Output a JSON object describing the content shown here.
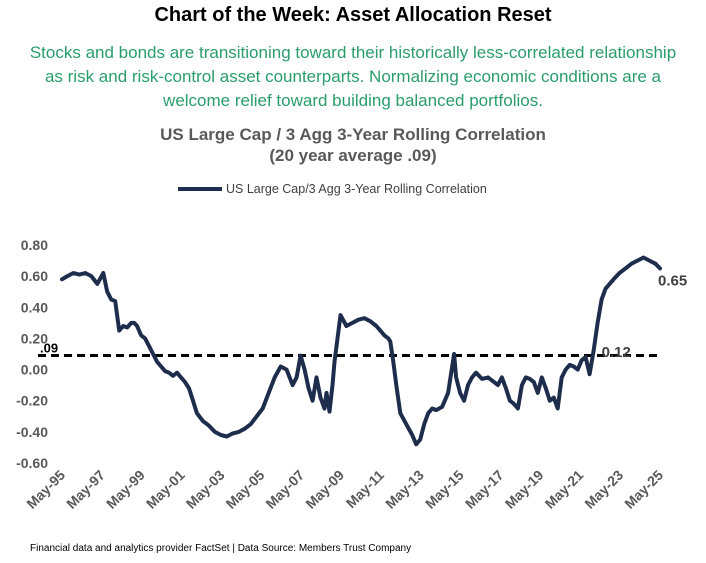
{
  "header": {
    "headline": "Chart of the Week: Asset Allocation Reset",
    "lede": "Stocks and bonds are transitioning toward their historically less-correlated relationship as risk and risk-control asset counterparts. Normalizing economic conditions are a welcome relief toward building balanced portfolios."
  },
  "chart_data": {
    "type": "line",
    "title": "US Large Cap / 3 Agg 3-Year Rolling Correlation",
    "subtitle": "(20 year average .09)",
    "xlabel": "",
    "ylabel": "",
    "legend": "top-center",
    "grid": false,
    "ylim": [
      -0.6,
      0.8
    ],
    "yticks": [
      "0.80",
      "0.60",
      "0.40",
      "0.20",
      "0.00",
      "-0.20",
      "-0.40",
      "-0.60"
    ],
    "xticks": [
      "May-95",
      "May-97",
      "May-99",
      "May-01",
      "May-03",
      "May-05",
      "May-07",
      "May-09",
      "May-11",
      "May-13",
      "May-15",
      "May-17",
      "May-19",
      "May-21",
      "May-23",
      "May-25"
    ],
    "series": [
      {
        "name": "US Large Cap/3 Agg 3-Year Rolling Correlation",
        "color": "#1f2d4d",
        "x": [
          1995.33,
          1995.6,
          1995.9,
          1996.2,
          1996.5,
          1996.8,
          1997.1,
          1997.4,
          1997.6,
          1997.8,
          1998.0,
          1998.2,
          1998.4,
          1998.6,
          1998.8,
          1998.95,
          1999.1,
          1999.3,
          1999.5,
          1999.7,
          1999.9,
          2000.1,
          2000.3,
          2000.5,
          2000.7,
          2000.9,
          2001.1,
          2001.3,
          2001.5,
          2001.7,
          2001.9,
          2002.1,
          2002.4,
          2002.7,
          2003.0,
          2003.3,
          2003.6,
          2003.9,
          2004.2,
          2004.5,
          2004.8,
          2005.1,
          2005.4,
          2005.7,
          2006.0,
          2006.3,
          2006.6,
          2006.9,
          2007.1,
          2007.3,
          2007.5,
          2007.7,
          2007.9,
          2008.1,
          2008.3,
          2008.5,
          2008.6,
          2008.75,
          2008.9,
          2009.0,
          2009.3,
          2009.6,
          2009.9,
          2010.2,
          2010.5,
          2010.8,
          2011.1,
          2011.3,
          2011.5,
          2011.7,
          2011.8,
          2011.95,
          2012.1,
          2012.3,
          2012.6,
          2012.9,
          2013.1,
          2013.3,
          2013.5,
          2013.7,
          2013.9,
          2014.1,
          2014.4,
          2014.7,
          2015.0,
          2015.1,
          2015.3,
          2015.5,
          2015.7,
          2015.9,
          2016.1,
          2016.4,
          2016.7,
          2017.0,
          2017.2,
          2017.4,
          2017.6,
          2017.8,
          2018.0,
          2018.2,
          2018.4,
          2018.6,
          2018.8,
          2019.0,
          2019.2,
          2019.4,
          2019.6,
          2019.8,
          2020.0,
          2020.2,
          2020.4,
          2020.6,
          2020.8,
          2021.0,
          2021.2,
          2021.4,
          2021.6,
          2021.8,
          2022.0,
          2022.2,
          2022.4,
          2022.6,
          2022.8,
          2023.0,
          2023.3,
          2023.6,
          2023.9,
          2024.2,
          2024.5,
          2024.8,
          2025.1,
          2025.33
        ],
        "y": [
          0.58,
          0.6,
          0.62,
          0.61,
          0.62,
          0.6,
          0.55,
          0.62,
          0.5,
          0.45,
          0.44,
          0.25,
          0.28,
          0.27,
          0.3,
          0.3,
          0.28,
          0.22,
          0.2,
          0.15,
          0.1,
          0.05,
          0.02,
          -0.01,
          -0.02,
          -0.04,
          -0.02,
          -0.05,
          -0.08,
          -0.12,
          -0.2,
          -0.28,
          -0.33,
          -0.36,
          -0.4,
          -0.42,
          -0.43,
          -0.41,
          -0.4,
          -0.38,
          -0.35,
          -0.3,
          -0.25,
          -0.15,
          -0.05,
          0.02,
          0.0,
          -0.1,
          -0.05,
          0.09,
          0.0,
          -0.12,
          -0.2,
          -0.05,
          -0.18,
          -0.25,
          -0.15,
          -0.27,
          -0.1,
          0.05,
          0.35,
          0.28,
          0.3,
          0.32,
          0.33,
          0.31,
          0.28,
          0.25,
          0.22,
          0.2,
          0.18,
          0.05,
          -0.1,
          -0.28,
          -0.35,
          -0.42,
          -0.48,
          -0.45,
          -0.35,
          -0.28,
          -0.25,
          -0.26,
          -0.24,
          -0.15,
          0.1,
          -0.05,
          -0.15,
          -0.2,
          -0.1,
          -0.05,
          -0.02,
          -0.06,
          -0.05,
          -0.08,
          -0.1,
          -0.05,
          -0.12,
          -0.2,
          -0.22,
          -0.25,
          -0.1,
          -0.05,
          -0.06,
          -0.08,
          -0.15,
          -0.05,
          -0.12,
          -0.2,
          -0.18,
          -0.25,
          -0.05,
          0.0,
          0.03,
          0.02,
          0.0,
          0.06,
          0.08,
          -0.03,
          0.12,
          0.3,
          0.45,
          0.52,
          0.55,
          0.58,
          0.62,
          0.65,
          0.68,
          0.7,
          0.72,
          0.7,
          0.68,
          0.65
        ]
      }
    ],
    "reference_line": {
      "value": 0.09,
      "label": ".09",
      "style": "dashed"
    },
    "annotations": [
      {
        "text": "0.65",
        "x": 2025.33,
        "y": 0.65
      },
      {
        "text": "0.12",
        "x": 2021.8,
        "y": 0.12
      }
    ]
  },
  "footer": {
    "source": "Financial data and analytics provider FactSet | Data Source: Members Trust Company"
  }
}
